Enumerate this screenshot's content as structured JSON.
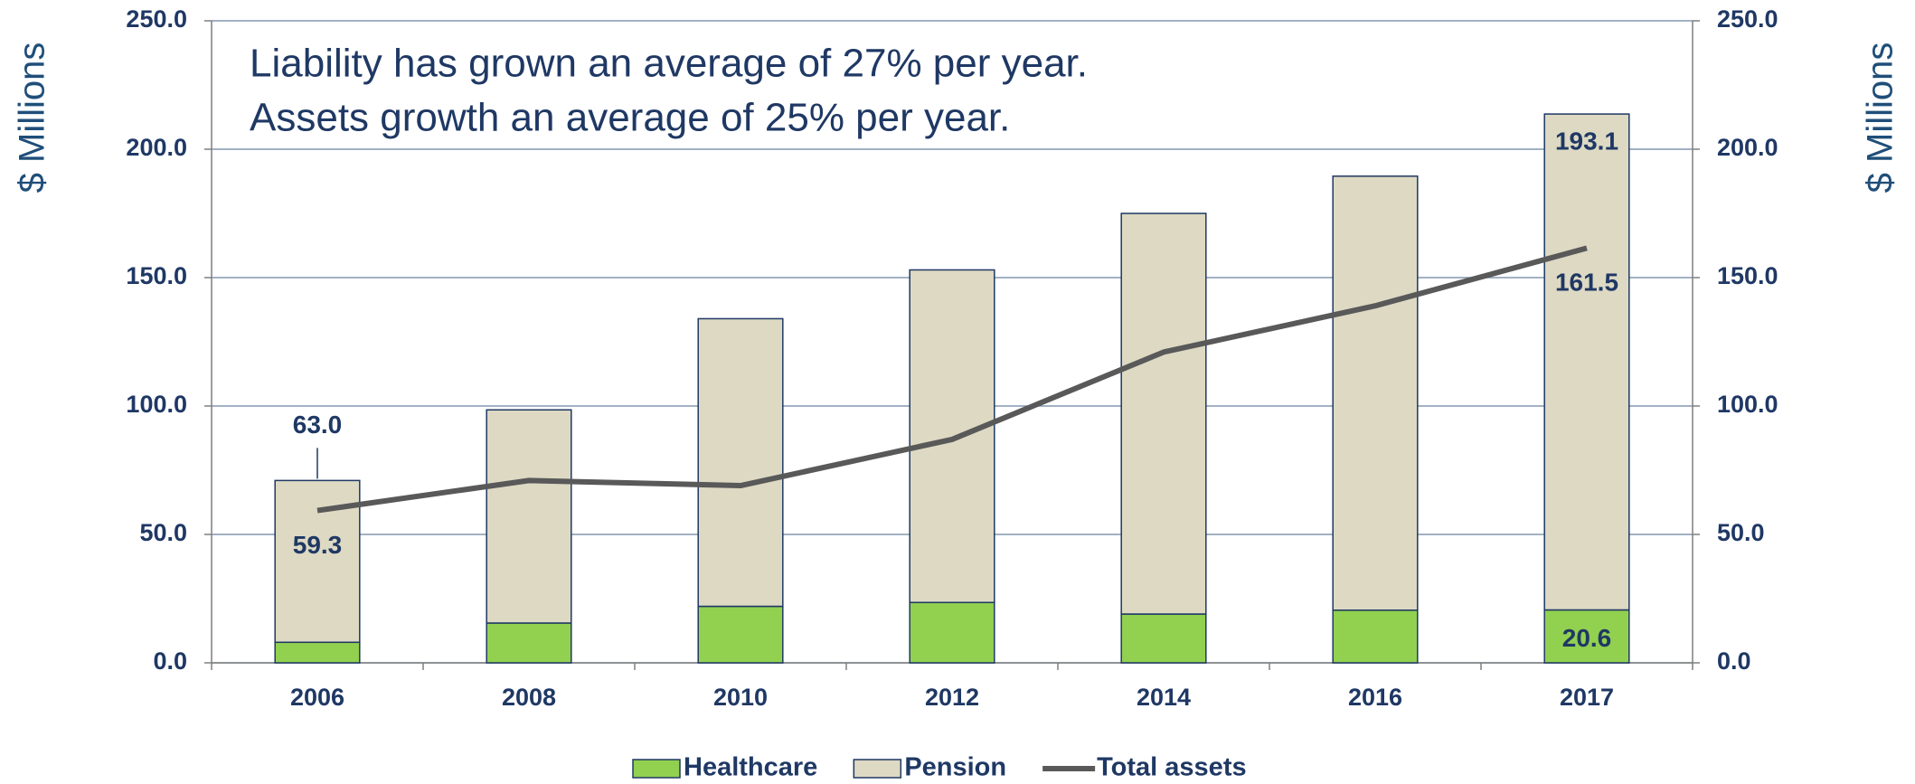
{
  "chart_data": {
    "type": "bar",
    "annotations": [
      "Liability has grown an average of 27% per year.",
      "Assets growth an average of 25% per year."
    ],
    "ylabel": "$ Millions",
    "y2label": "$ Millions",
    "categories": [
      "2006",
      "2008",
      "2010",
      "2012",
      "2014",
      "2016",
      "2017"
    ],
    "series": [
      {
        "name": "Healthcare",
        "type": "bar",
        "color": "#92d050",
        "values": [
          8,
          15.5,
          22,
          23.5,
          19,
          20.5,
          20.6
        ],
        "value_labels": [
          null,
          null,
          null,
          null,
          null,
          null,
          "20.6"
        ]
      },
      {
        "name": "Pension",
        "type": "bar",
        "color": "#ddd9c3",
        "values": [
          63,
          83,
          112,
          129.5,
          156,
          169,
          193.1
        ],
        "value_labels": [
          "63.0",
          null,
          null,
          null,
          null,
          null,
          "193.1"
        ]
      },
      {
        "name": "Total assets",
        "type": "line",
        "color": "#595959",
        "values": [
          59.3,
          71,
          69,
          87,
          121,
          139,
          161.5
        ],
        "value_labels": [
          "59.3",
          null,
          null,
          null,
          null,
          null,
          "161.5"
        ]
      }
    ],
    "ylim": [
      0,
      250
    ],
    "yticks": [
      {
        "value": 0,
        "label": "0.0"
      },
      {
        "value": 50,
        "label": "50.0"
      },
      {
        "value": 100,
        "label": "100.0"
      },
      {
        "value": 150,
        "label": "150.0"
      },
      {
        "value": 200,
        "label": "200.0"
      },
      {
        "value": 250,
        "label": "250.0"
      }
    ],
    "y2lim": [
      0,
      250
    ],
    "y2ticks": [
      {
        "value": 0,
        "label": "0.0"
      },
      {
        "value": 50,
        "label": "50.0"
      },
      {
        "value": 100,
        "label": "100.0"
      },
      {
        "value": 150,
        "label": "150.0"
      },
      {
        "value": 200,
        "label": "200.0"
      },
      {
        "value": 250,
        "label": "250.0"
      }
    ],
    "grid": true,
    "legend": "bottom"
  }
}
